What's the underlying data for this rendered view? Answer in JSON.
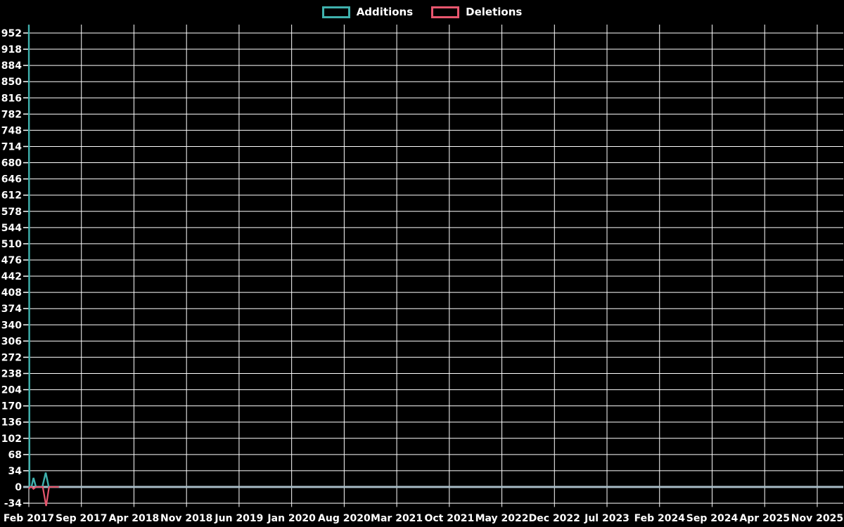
{
  "legend": {
    "items": [
      {
        "label": "Additions",
        "color": "#3fb1ad"
      },
      {
        "label": "Deletions",
        "color": "#e8566e"
      }
    ]
  },
  "chart_data": {
    "type": "line",
    "title": "",
    "xlabel": "",
    "ylabel": "",
    "background_color": "#000000",
    "grid": true,
    "grid_color": "#ffffff",
    "zero_line_color": "#a8bcc6",
    "text_color": "#ffffff",
    "legend_position": "top-center",
    "x_tick_labels": [
      "Feb 2017",
      "Sep 2017",
      "Apr 2018",
      "Nov 2018",
      "Jun 2019",
      "Jan 2020",
      "Aug 2020",
      "Mar 2021",
      "Oct 2021",
      "May 2022",
      "Dec 2022",
      "Jul 2023",
      "Feb 2024",
      "Sep 2024",
      "Apr 2025",
      "Nov 2025"
    ],
    "months_per_x_tick": 7,
    "y_ticks": [
      952,
      918,
      884,
      850,
      816,
      782,
      748,
      714,
      680,
      646,
      612,
      578,
      544,
      510,
      476,
      442,
      408,
      374,
      340,
      306,
      272,
      238,
      204,
      170,
      136,
      102,
      68,
      34,
      0,
      -34
    ],
    "y_tick_step": 34,
    "ylim": [
      -42,
      969
    ],
    "series": [
      {
        "name": "Additions",
        "color": "#3fb1ad",
        "stroke_width": 2.4,
        "points_month_value": [
          [
            0,
            969
          ],
          [
            0.08,
            0
          ],
          [
            0.35,
            0
          ],
          [
            0.62,
            19
          ],
          [
            0.95,
            0
          ],
          [
            1.8,
            0
          ],
          [
            2.25,
            30
          ],
          [
            2.65,
            0
          ],
          [
            4,
            0
          ]
        ]
      },
      {
        "name": "Deletions",
        "color": "#e8566e",
        "stroke_width": 2.2,
        "points_month_value": [
          [
            0,
            -4
          ],
          [
            0.18,
            0
          ],
          [
            0.4,
            0
          ],
          [
            0.62,
            -4
          ],
          [
            0.95,
            0
          ],
          [
            1.85,
            0
          ],
          [
            2.3,
            -40
          ],
          [
            2.7,
            0
          ],
          [
            4,
            0
          ]
        ]
      }
    ]
  }
}
